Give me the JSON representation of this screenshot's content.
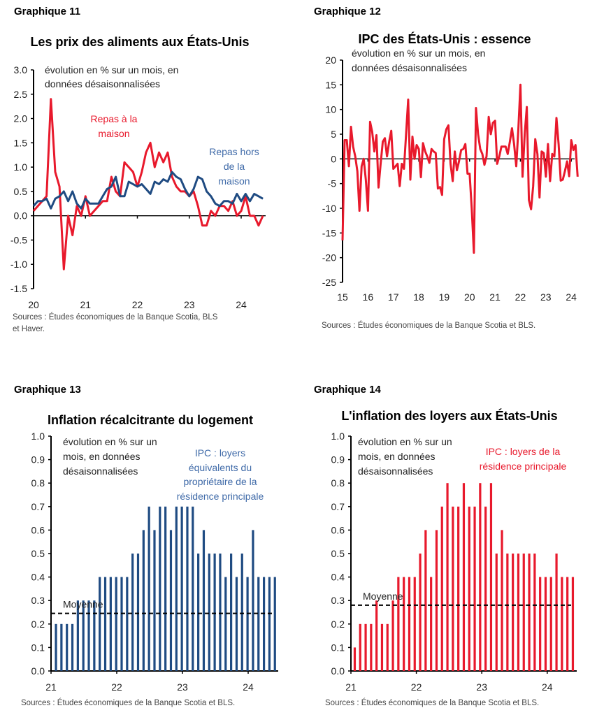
{
  "colors": {
    "red": "#e8192c",
    "blue": "#1f4b82",
    "blue_label": "#3f6aa8",
    "axis": "#000000"
  },
  "chart_data": [
    {
      "heading": "Graphique 11",
      "type": "line",
      "title": "Les prix des aliments aux États-Unis",
      "note": [
        "évolution en % sur un mois, en",
        "données désaisonnalisées"
      ],
      "sources": [
        "Sources : Études économiques de la Banque Scotia, BLS",
        "et Haver."
      ],
      "xlabel": "",
      "ylabel": "",
      "x_tick_labels": [
        "20",
        "21",
        "22",
        "23",
        "24"
      ],
      "ylim": [
        -1.5,
        3.0
      ],
      "y_ticks": [
        "3.0",
        "2.5",
        "2.0",
        "1.5",
        "1.0",
        "0.5",
        "0.0",
        "-0.5",
        "-1.0",
        "-1.5"
      ],
      "frequency": "monthly from 2020-01",
      "series": [
        {
          "name": "Repas à la maison",
          "label_lines": [
            "Repas à la",
            "maison"
          ],
          "color": "#e8192c",
          "values": [
            0.1,
            0.2,
            0.3,
            0.4,
            2.4,
            0.9,
            0.6,
            -1.1,
            0.0,
            -0.4,
            0.2,
            0.0,
            0.4,
            0.0,
            0.1,
            0.2,
            0.3,
            0.3,
            0.8,
            0.5,
            0.4,
            1.1,
            1.0,
            0.9,
            0.6,
            0.9,
            1.3,
            1.5,
            1.0,
            1.3,
            1.1,
            1.3,
            0.8,
            0.6,
            0.5,
            0.5,
            0.4,
            0.5,
            0.2,
            -0.2,
            -0.2,
            0.1,
            0.0,
            0.2,
            0.2,
            0.1,
            0.3,
            0.0,
            0.1,
            0.4,
            0.0,
            0.0,
            -0.2,
            0.0
          ]
        },
        {
          "name": "Repas hors de la maison",
          "label_lines": [
            "Repas hors",
            "de la",
            "maison"
          ],
          "color": "#1f4b82",
          "values": [
            0.2,
            0.3,
            0.3,
            0.35,
            0.15,
            0.35,
            0.4,
            0.5,
            0.3,
            0.5,
            0.25,
            0.15,
            0.35,
            0.25,
            0.25,
            0.25,
            0.4,
            0.55,
            0.6,
            0.8,
            0.4,
            0.4,
            0.7,
            0.65,
            0.6,
            0.65,
            0.55,
            0.45,
            0.7,
            0.65,
            0.75,
            0.7,
            0.9,
            0.8,
            0.75,
            0.55,
            0.4,
            0.55,
            0.8,
            0.75,
            0.5,
            0.4,
            0.25,
            0.2,
            0.3,
            0.3,
            0.25,
            0.45,
            0.3,
            0.45,
            0.3,
            0.45,
            0.4,
            0.35
          ]
        }
      ]
    },
    {
      "heading": "Graphique 12",
      "type": "line",
      "title": "IPC des États-Unis : essence",
      "note": [
        "évolution en % sur un mois, en",
        "données désaisonnalisées"
      ],
      "sources": [
        "Sources : Études économiques de la Banque Scotia et BLS."
      ],
      "xlabel": "",
      "ylabel": "",
      "x_tick_labels": [
        "15",
        "16",
        "17",
        "18",
        "19",
        "20",
        "21",
        "22",
        "23",
        "24"
      ],
      "ylim": [
        -25,
        20
      ],
      "y_ticks": [
        "20",
        "15",
        "10",
        "5",
        "0",
        "-5",
        "-10",
        "-15",
        "-20",
        "-25"
      ],
      "frequency": "monthly from 2015-01",
      "series": [
        {
          "color": "#e8192c",
          "values": [
            -16.5,
            3.8,
            3.8,
            -1.5,
            6.5,
            2.5,
            0.5,
            -2.5,
            -10.5,
            -1.5,
            0,
            -4.2,
            -10.5,
            7.5,
            5.5,
            1.5,
            4.8,
            -5.8,
            -1,
            3.5,
            4.2,
            0.5,
            3.5,
            5.7,
            -2,
            -1.5,
            -1,
            -5.5,
            -1,
            -2,
            5,
            12,
            -4.2,
            4.5,
            0,
            2.8,
            2,
            -3.7,
            3.2,
            1.5,
            0.5,
            -0.8,
            2,
            1.5,
            1.2,
            -6,
            -5.7,
            -7.3,
            4,
            6,
            6.8,
            -1,
            -4.5,
            1.5,
            -2.3,
            -0.5,
            1.8,
            2,
            3,
            -3,
            -3,
            -10,
            -19,
            10.3,
            5,
            2,
            1,
            -1.2,
            0.5,
            8.5,
            5,
            7.3,
            7.7,
            -1,
            0.5,
            2.5,
            2.5,
            2.5,
            1,
            3.5,
            6.2,
            3,
            -1.5,
            6,
            15,
            -3.6,
            5,
            10.5,
            -8.3,
            -10.2,
            -5.5,
            4,
            1,
            -7.8,
            1.5,
            1.2,
            -3.6,
            3,
            -4.5,
            1,
            0.5,
            8.3,
            3,
            -4.4,
            -4.2,
            -2.5,
            -0.5,
            -3.5,
            3.8,
            1.8,
            2.8,
            -3.6
          ]
        }
      ]
    },
    {
      "heading": "Graphique 13",
      "type": "bar",
      "title": "Inflation récalcitrante du logement",
      "note": [
        "évolution en % sur un",
        "mois, en données",
        "désaisonnalisées"
      ],
      "sources": [
        "Sources : Études économiques de la Banque Scotia et BLS."
      ],
      "xlabel": "",
      "ylabel": "",
      "x_tick_labels": [
        "21",
        "22",
        "23",
        "24"
      ],
      "ylim": [
        0,
        1.0
      ],
      "y_ticks": [
        "1.0",
        "0.9",
        "0.8",
        "0.7",
        "0.6",
        "0.5",
        "0.4",
        "0.3",
        "0.2",
        "0.1",
        "0.0"
      ],
      "frequency": "monthly from 2021",
      "series": [
        {
          "name": "IPC : loyers équivalents du propriétaire de la résidence principale",
          "label_lines": [
            "IPC : loyers",
            "équivalents du",
            "propriétaire de la",
            "résidence principale"
          ],
          "color": "#1f4b82",
          "values": [
            0.2,
            0.2,
            0.2,
            0.2,
            0.3,
            0.3,
            0.3,
            0.3,
            0.4,
            0.4,
            0.4,
            0.4,
            0.4,
            0.4,
            0.5,
            0.5,
            0.6,
            0.7,
            0.6,
            0.7,
            0.7,
            0.6,
            0.7,
            0.7,
            0.7,
            0.7,
            0.5,
            0.6,
            0.5,
            0.5,
            0.5,
            0.4,
            0.5,
            0.4,
            0.5,
            0.4,
            0.6,
            0.4,
            0.4,
            0.4,
            0.4
          ]
        }
      ],
      "average": {
        "label": "Moyenne",
        "value": 0.245
      }
    },
    {
      "heading": "Graphique 14",
      "type": "bar",
      "title": "L'inflation des loyers aux États-Unis",
      "note": [
        "évolution en % sur un",
        "mois, en données",
        "désaisonnalisées"
      ],
      "sources": [
        "Sources : Études économiques de la Banque Scotia et BLS."
      ],
      "xlabel": "",
      "ylabel": "",
      "x_tick_labels": [
        "21",
        "22",
        "23",
        "24"
      ],
      "ylim": [
        0,
        1.0
      ],
      "y_ticks": [
        "1.0",
        "0.9",
        "0.8",
        "0.7",
        "0.6",
        "0.5",
        "0.4",
        "0.3",
        "0.2",
        "0.1",
        "0.0"
      ],
      "frequency": "monthly from 2021",
      "series": [
        {
          "name": "IPC : loyers de la résidence principale",
          "label_lines": [
            "IPC : loyers de la",
            "résidence principale"
          ],
          "color": "#e8192c",
          "values": [
            0.1,
            0.2,
            0.2,
            0.2,
            0.3,
            0.2,
            0.2,
            0.3,
            0.4,
            0.4,
            0.4,
            0.4,
            0.5,
            0.6,
            0.4,
            0.6,
            0.7,
            0.8,
            0.7,
            0.7,
            0.8,
            0.7,
            0.7,
            0.8,
            0.7,
            0.8,
            0.5,
            0.6,
            0.5,
            0.5,
            0.5,
            0.5,
            0.5,
            0.5,
            0.4,
            0.4,
            0.4,
            0.5,
            0.4,
            0.4,
            0.4
          ]
        }
      ],
      "average": {
        "label": "Moyenne",
        "value": 0.28
      }
    }
  ]
}
